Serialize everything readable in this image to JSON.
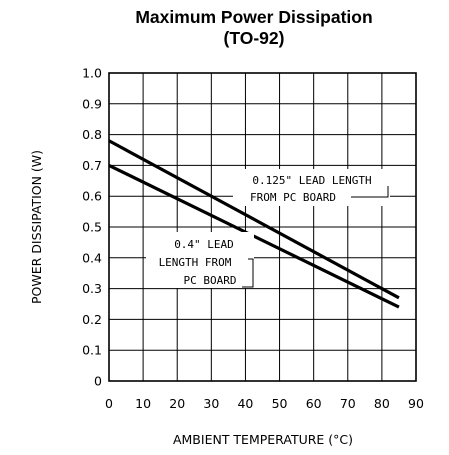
{
  "chart_data": {
    "type": "line",
    "title": "Maximum Power Dissipation",
    "subtitle": "(TO-92)",
    "xlabel": "AMBIENT TEMPERATURE (°C)",
    "ylabel": "POWER DISSIPATION (W)",
    "xlim": [
      0,
      90
    ],
    "ylim": [
      0,
      1.0
    ],
    "x_ticks": [
      "0",
      "10",
      "20",
      "30",
      "40",
      "50",
      "60",
      "70",
      "80",
      "90"
    ],
    "y_ticks": [
      "0",
      "0.1",
      "0.2",
      "0.3",
      "0.4",
      "0.5",
      "0.6",
      "0.7",
      "0.8",
      "0.9",
      "1.0"
    ],
    "grid": true,
    "series": [
      {
        "name": "0.125\" LEAD LENGTH FROM PC BOARD",
        "x": [
          0,
          85
        ],
        "y": [
          0.78,
          0.27
        ]
      },
      {
        "name": "0.4\" LEAD LENGTH FROM PC BOARD",
        "x": [
          0,
          85
        ],
        "y": [
          0.7,
          0.24
        ]
      }
    ],
    "annotations": [
      {
        "lines": [
          "0.125\" LEAD LENGTH",
          "FROM PC BOARD"
        ]
      },
      {
        "lines": [
          "0.4\" LEAD",
          "LENGTH FROM",
          "PC BOARD"
        ]
      }
    ]
  }
}
